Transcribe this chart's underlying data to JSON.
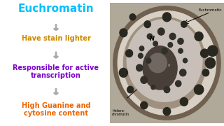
{
  "title": "Euchromatin",
  "title_color": "#00BFFF",
  "background_color": "#FFFFFF",
  "items": [
    {
      "text": "Have stain lighter",
      "color": "#CC8800"
    },
    {
      "text": "Responsible for active\ntranscription",
      "color": "#7B00CC"
    },
    {
      "text": "High Guanine and\ncytosine content",
      "color": "#EE6600"
    }
  ],
  "arrow_color": "#AAAAAA",
  "cell_labels": {
    "euchromatin": "Euchromatin",
    "heterochromatin": "Hetero-\nchromatin",
    "nucleus": "N",
    "h_label": "h"
  }
}
